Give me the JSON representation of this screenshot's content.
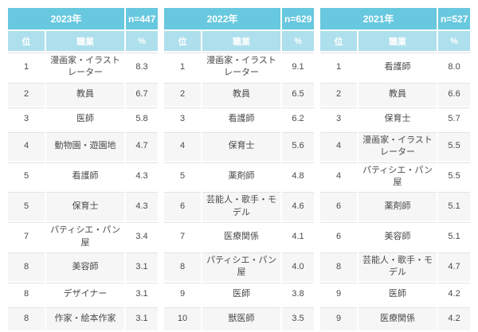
{
  "colors": {
    "year_header_bg": "#67c8df",
    "sub_header_bg": "#aedfec",
    "header_text": "#ffffff",
    "stripe_bg": "#f6f6f6",
    "row_border": "#e3e3e3",
    "text": "#4a4a4a",
    "page_bg": "#ffffff"
  },
  "chart_data": {
    "type": "table",
    "groups": [
      {
        "year_label": "2023年",
        "n_label": "n=447",
        "columns": [
          "位",
          "職業",
          "%"
        ],
        "rows": [
          {
            "rank": "1",
            "job": "漫画家・イラストレーター",
            "pct": "8.3"
          },
          {
            "rank": "2",
            "job": "教員",
            "pct": "6.7"
          },
          {
            "rank": "3",
            "job": "医師",
            "pct": "5.8"
          },
          {
            "rank": "4",
            "job": "動物園・遊園地",
            "pct": "4.7"
          },
          {
            "rank": "5",
            "job": "看護師",
            "pct": "4.3"
          },
          {
            "rank": "5",
            "job": "保育士",
            "pct": "4.3"
          },
          {
            "rank": "7",
            "job": "パティシエ・パン屋",
            "pct": "3.4"
          },
          {
            "rank": "8",
            "job": "美容師",
            "pct": "3.1"
          },
          {
            "rank": "8",
            "job": "デザイナー",
            "pct": "3.1"
          },
          {
            "rank": "8",
            "job": "作家・絵本作家",
            "pct": "3.1"
          }
        ]
      },
      {
        "year_label": "2022年",
        "n_label": "n=629",
        "columns": [
          "位",
          "職業",
          "%"
        ],
        "rows": [
          {
            "rank": "1",
            "job": "漫画家・イラストレーター",
            "pct": "9.1"
          },
          {
            "rank": "2",
            "job": "教員",
            "pct": "6.5"
          },
          {
            "rank": "3",
            "job": "看護師",
            "pct": "6.2"
          },
          {
            "rank": "4",
            "job": "保育士",
            "pct": "5.6"
          },
          {
            "rank": "5",
            "job": "薬剤師",
            "pct": "4.8"
          },
          {
            "rank": "6",
            "job": "芸能人・歌手・モデル",
            "pct": "4.6"
          },
          {
            "rank": "7",
            "job": "医療関係",
            "pct": "4.1"
          },
          {
            "rank": "8",
            "job": "パティシエ・パン屋",
            "pct": "4.0"
          },
          {
            "rank": "9",
            "job": "医師",
            "pct": "3.8"
          },
          {
            "rank": "10",
            "job": "獣医師",
            "pct": "3.5"
          }
        ]
      },
      {
        "year_label": "2021年",
        "n_label": "n=527",
        "columns": [
          "位",
          "職業",
          "%"
        ],
        "rows": [
          {
            "rank": "1",
            "job": "看護師",
            "pct": "8.0"
          },
          {
            "rank": "2",
            "job": "教員",
            "pct": "6.6"
          },
          {
            "rank": "3",
            "job": "保育士",
            "pct": "5.7"
          },
          {
            "rank": "4",
            "job": "漫画家・イラストレーター",
            "pct": "5.5"
          },
          {
            "rank": "4",
            "job": "パティシエ・パン屋",
            "pct": "5.5"
          },
          {
            "rank": "6",
            "job": "薬剤師",
            "pct": "5.1"
          },
          {
            "rank": "6",
            "job": "美容師",
            "pct": "5.1"
          },
          {
            "rank": "8",
            "job": "芸能人・歌手・モデル",
            "pct": "4.7"
          },
          {
            "rank": "9",
            "job": "医師",
            "pct": "4.2"
          },
          {
            "rank": "9",
            "job": "医療関係",
            "pct": "4.2"
          }
        ]
      }
    ]
  }
}
